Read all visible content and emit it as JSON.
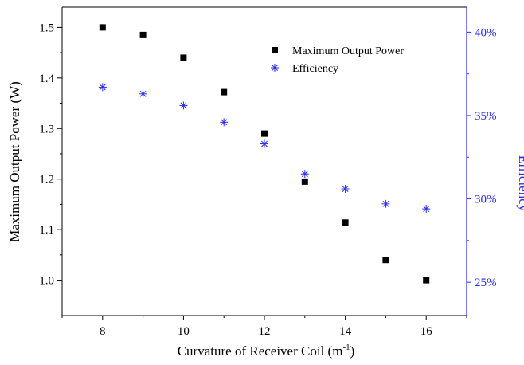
{
  "chart_data": {
    "type": "scatter",
    "title": "",
    "xlabel_main": "Curvature of Receiver Coil (m",
    "xlabel_sup": "-1",
    "xlabel_close": ")",
    "ylabel_left": "Maximum Output Power (W)",
    "ylabel_right": "Efficiency",
    "xlim": [
      7,
      17
    ],
    "ylim_left": [
      0.93,
      1.54
    ],
    "ylim_right": [
      23.0,
      41.5
    ],
    "x_ticks": [
      8,
      10,
      12,
      14,
      16
    ],
    "y_left_ticks": [
      1.0,
      1.1,
      1.2,
      1.3,
      1.4,
      1.5
    ],
    "y_left_tick_labels": [
      "1.0",
      "1.1",
      "1.2",
      "1.3",
      "1.4",
      "1.5"
    ],
    "y_right_ticks": [
      25,
      30,
      35,
      40
    ],
    "y_right_tick_labels": [
      "25%",
      "30%",
      "35%",
      "40%"
    ],
    "grid": false,
    "legend_position": "top-right",
    "series": [
      {
        "name": "Maximum Output Power",
        "axis": "left",
        "marker": "square",
        "color": "#000000",
        "x": [
          8,
          9,
          10,
          11,
          12,
          13,
          14,
          15,
          16
        ],
        "y": [
          1.5,
          1.485,
          1.44,
          1.372,
          1.29,
          1.195,
          1.114,
          1.04,
          1.0
        ]
      },
      {
        "name": "Efficiency",
        "axis": "right",
        "marker": "asterisk",
        "color": "#2a2aff",
        "x": [
          8,
          9,
          10,
          11,
          12,
          13,
          14,
          15,
          16
        ],
        "y": [
          36.7,
          36.3,
          35.6,
          34.6,
          33.3,
          31.5,
          30.6,
          29.7,
          29.4
        ]
      }
    ]
  },
  "colors": {
    "axis_left": "#000000",
    "axis_right": "#2a2aff"
  }
}
